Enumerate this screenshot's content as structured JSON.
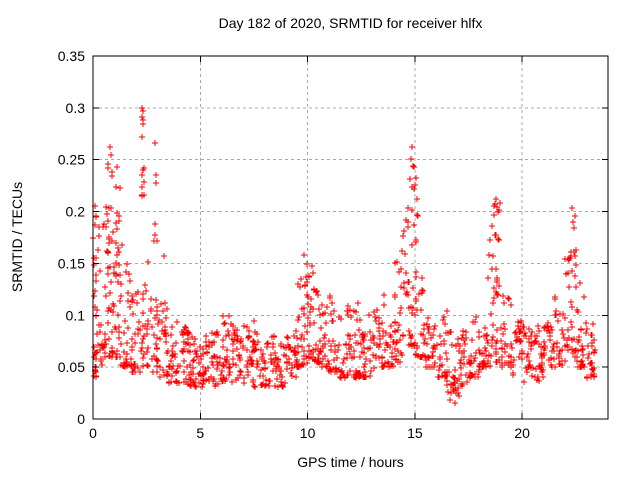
{
  "chart_data": {
    "type": "scatter",
    "title": "Day 182 of 2020, SRMTID for receiver hlfx",
    "xlabel": "GPS time / hours",
    "ylabel": "SRMTID / TECUs",
    "xlim": [
      0,
      24
    ],
    "ylim": [
      0,
      0.35
    ],
    "x_ticks": [
      0,
      5,
      10,
      15,
      20
    ],
    "x_tick_labels": [
      "0",
      "5",
      "10",
      "15",
      "20"
    ],
    "y_ticks": [
      0,
      0.05,
      0.1,
      0.15,
      0.2,
      0.25,
      0.3,
      0.35
    ],
    "y_tick_labels": [
      "0",
      "0.05",
      "0.1",
      "0.15",
      "0.2",
      "0.25",
      "0.3",
      "0.35"
    ],
    "grid": true,
    "grid_style": "dashed",
    "legend": "none",
    "marker": "plus",
    "marker_size_px": 7,
    "marker_color": "#ff0000",
    "grid_color": "#a8a8a8",
    "border_color": "#000000",
    "background": "#ffffff",
    "seed": 182,
    "density_exponent": 1.9,
    "uniform_band_threshold": 0.06,
    "bands": [
      [
        0.0,
        0.15,
        0.04,
        0.2,
        16
      ],
      [
        0.05,
        0.5,
        0.05,
        0.19,
        30
      ],
      [
        0.5,
        0.95,
        0.06,
        0.21,
        32
      ],
      [
        0.6,
        1.0,
        0.14,
        0.245,
        10
      ],
      [
        0.9,
        1.3,
        0.06,
        0.2,
        30
      ],
      [
        1.05,
        1.35,
        0.15,
        0.235,
        6
      ],
      [
        1.3,
        1.8,
        0.05,
        0.155,
        30
      ],
      [
        1.8,
        2.2,
        0.045,
        0.13,
        28
      ],
      [
        2.2,
        2.6,
        0.05,
        0.155,
        26
      ],
      [
        2.25,
        2.4,
        0.215,
        0.275,
        6
      ],
      [
        2.6,
        3.1,
        0.045,
        0.135,
        26
      ],
      [
        2.8,
        3.05,
        0.17,
        0.24,
        6
      ],
      [
        3.1,
        3.5,
        0.04,
        0.115,
        26
      ],
      [
        3.5,
        4.0,
        0.035,
        0.1,
        28
      ],
      [
        4.0,
        4.5,
        0.03,
        0.09,
        28
      ],
      [
        4.5,
        5.0,
        0.03,
        0.08,
        28
      ],
      [
        5.0,
        5.5,
        0.03,
        0.08,
        28
      ],
      [
        5.5,
        6.0,
        0.032,
        0.085,
        28
      ],
      [
        6.0,
        6.5,
        0.035,
        0.1,
        30
      ],
      [
        6.5,
        7.0,
        0.032,
        0.09,
        28
      ],
      [
        7.0,
        7.5,
        0.035,
        0.095,
        28
      ],
      [
        7.5,
        8.0,
        0.03,
        0.085,
        28
      ],
      [
        8.0,
        8.5,
        0.03,
        0.08,
        26
      ],
      [
        8.5,
        9.0,
        0.03,
        0.075,
        26
      ],
      [
        9.0,
        9.5,
        0.035,
        0.085,
        28
      ],
      [
        9.5,
        10.0,
        0.05,
        0.135,
        30
      ],
      [
        9.7,
        10.4,
        0.105,
        0.15,
        10
      ],
      [
        10.0,
        10.5,
        0.055,
        0.13,
        30
      ],
      [
        10.5,
        11.0,
        0.05,
        0.12,
        30
      ],
      [
        11.0,
        11.5,
        0.045,
        0.12,
        28
      ],
      [
        11.5,
        12.0,
        0.04,
        0.11,
        28
      ],
      [
        12.0,
        12.5,
        0.04,
        0.105,
        28
      ],
      [
        12.5,
        13.0,
        0.04,
        0.1,
        28
      ],
      [
        13.0,
        13.5,
        0.045,
        0.105,
        28
      ],
      [
        13.5,
        14.0,
        0.05,
        0.12,
        28
      ],
      [
        14.0,
        14.5,
        0.055,
        0.155,
        30
      ],
      [
        14.3,
        14.75,
        0.12,
        0.195,
        10
      ],
      [
        14.5,
        15.1,
        0.07,
        0.205,
        28
      ],
      [
        14.7,
        15.05,
        0.205,
        0.25,
        5
      ],
      [
        15.0,
        15.5,
        0.06,
        0.175,
        28
      ],
      [
        15.5,
        16.0,
        0.05,
        0.12,
        28
      ],
      [
        16.0,
        16.5,
        0.04,
        0.105,
        28
      ],
      [
        16.5,
        17.0,
        0.025,
        0.085,
        26
      ],
      [
        17.0,
        17.5,
        0.03,
        0.085,
        26
      ],
      [
        17.5,
        18.0,
        0.04,
        0.105,
        28
      ],
      [
        18.0,
        18.5,
        0.05,
        0.135,
        30
      ],
      [
        18.2,
        18.95,
        0.13,
        0.18,
        10
      ],
      [
        18.5,
        19.0,
        0.055,
        0.155,
        28
      ],
      [
        18.6,
        19.0,
        0.18,
        0.21,
        5
      ],
      [
        19.0,
        19.5,
        0.05,
        0.125,
        28
      ],
      [
        19.5,
        20.0,
        0.04,
        0.095,
        26
      ],
      [
        20.0,
        20.5,
        0.035,
        0.09,
        26
      ],
      [
        20.5,
        21.0,
        0.035,
        0.09,
        26
      ],
      [
        21.0,
        21.5,
        0.04,
        0.095,
        26
      ],
      [
        21.5,
        22.0,
        0.05,
        0.125,
        28
      ],
      [
        22.0,
        22.5,
        0.06,
        0.16,
        28
      ],
      [
        22.15,
        22.5,
        0.155,
        0.2,
        6
      ],
      [
        22.5,
        23.0,
        0.05,
        0.12,
        28
      ],
      [
        23.0,
        23.4,
        0.04,
        0.1,
        24
      ]
    ],
    "peak_points": [
      [
        0.08,
        0.205
      ],
      [
        0.12,
        0.195
      ],
      [
        0.3,
        0.185
      ],
      [
        0.78,
        0.262
      ],
      [
        0.82,
        0.255
      ],
      [
        0.72,
        0.246
      ],
      [
        0.88,
        0.238
      ],
      [
        1.1,
        0.243
      ],
      [
        2.3,
        0.3
      ],
      [
        2.32,
        0.297
      ],
      [
        2.28,
        0.291
      ],
      [
        2.31,
        0.288
      ],
      [
        2.34,
        0.284
      ],
      [
        2.3,
        0.272
      ],
      [
        2.36,
        0.242
      ],
      [
        2.29,
        0.235
      ],
      [
        2.27,
        0.224
      ],
      [
        2.9,
        0.266
      ],
      [
        2.95,
        0.235
      ],
      [
        3.3,
        0.157
      ],
      [
        9.82,
        0.158
      ],
      [
        9.95,
        0.149
      ],
      [
        10.2,
        0.148
      ],
      [
        12.35,
        0.112
      ],
      [
        14.85,
        0.262
      ],
      [
        14.8,
        0.251
      ],
      [
        14.9,
        0.244
      ],
      [
        14.76,
        0.231
      ],
      [
        14.95,
        0.222
      ],
      [
        15.08,
        0.212
      ],
      [
        15.15,
        0.196
      ],
      [
        16.62,
        0.018
      ],
      [
        16.85,
        0.015
      ],
      [
        17.05,
        0.022
      ],
      [
        18.78,
        0.212
      ],
      [
        18.84,
        0.204
      ],
      [
        18.7,
        0.197
      ],
      [
        18.6,
        0.186
      ],
      [
        22.3,
        0.203
      ],
      [
        22.36,
        0.19
      ],
      [
        22.7,
        0.131
      ],
      [
        23.32,
        0.092
      ],
      [
        23.35,
        0.065
      ]
    ]
  }
}
